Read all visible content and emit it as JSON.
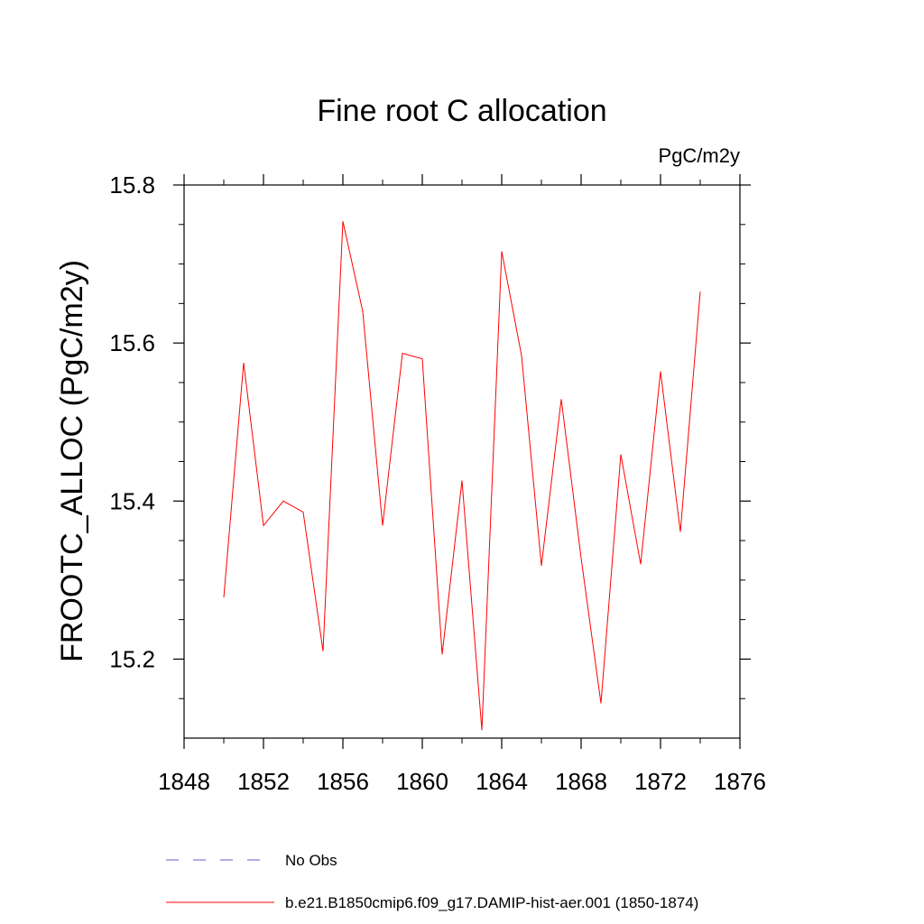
{
  "chart_data": {
    "type": "line",
    "title": "Fine root C allocation",
    "units_label": "PgC/m2y",
    "xlabel": "",
    "ylabel": "FROOTC_ALLOC  (PgC/m2y)",
    "xlim": [
      1848,
      1876
    ],
    "ylim": [
      15.1,
      15.8
    ],
    "x_ticks": [
      1848,
      1852,
      1856,
      1860,
      1864,
      1868,
      1872,
      1876
    ],
    "x_tick_labels": [
      "1848",
      "1852",
      "1856",
      "1860",
      "1864",
      "1868",
      "1872",
      "1876"
    ],
    "x_minor_step": 2,
    "y_ticks": [
      15.2,
      15.4,
      15.6,
      15.8
    ],
    "y_tick_labels": [
      "15.2",
      "15.4",
      "15.6",
      "15.8"
    ],
    "y_minor_step": 0.05,
    "grid": false,
    "legend_position": "bottom",
    "series": [
      {
        "name": "No Obs",
        "color": "#6a5acd",
        "dash": "dashed",
        "x": [],
        "values": []
      },
      {
        "name": "b.e21.B1850cmip6.f09_g17.DAMIP-hist-aer.001 (1850-1874)",
        "color": "#ff0000",
        "dash": "solid",
        "x": [
          1850,
          1851,
          1852,
          1853,
          1854,
          1855,
          1856,
          1857,
          1858,
          1859,
          1860,
          1861,
          1862,
          1863,
          1864,
          1865,
          1866,
          1867,
          1868,
          1869,
          1870,
          1871,
          1872,
          1873,
          1874
        ],
        "values": [
          15.278,
          15.575,
          15.369,
          15.4,
          15.386,
          15.21,
          15.754,
          15.64,
          15.369,
          15.587,
          15.58,
          15.206,
          15.426,
          15.11,
          15.716,
          15.584,
          15.318,
          15.529,
          15.328,
          15.144,
          15.459,
          15.32,
          15.564,
          15.361,
          15.665
        ]
      }
    ]
  }
}
